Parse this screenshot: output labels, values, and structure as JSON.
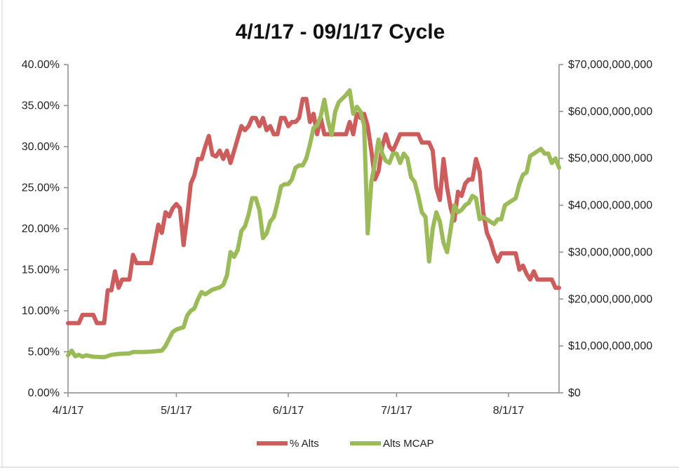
{
  "chart_data": {
    "type": "line",
    "title": "4/1/17 - 09/1/17 Cycle",
    "xlabel": "",
    "ylabel": "",
    "x_range": [
      "4/1/17",
      "8/15/17"
    ],
    "x_ticks": [
      "4/1/17",
      "5/1/17",
      "6/1/17",
      "7/1/17",
      "8/1/17"
    ],
    "y_left": {
      "ylim": [
        0,
        40
      ],
      "ticks": [
        "0.00%",
        "5.00%",
        "10.00%",
        "15.00%",
        "20.00%",
        "25.00%",
        "30.00%",
        "35.00%",
        "40.00%"
      ]
    },
    "y_right": {
      "ylim": [
        0,
        70000000000
      ],
      "ticks": [
        "$0",
        "$10,000,000,000",
        "$20,000,000,000",
        "$30,000,000,000",
        "$40,000,000,000",
        "$50,000,000,000",
        "$60,000,000,000",
        "$70,000,000,000"
      ]
    },
    "grid": false,
    "legend_position": "bottom",
    "series": [
      {
        "name": "% Alts",
        "axis": "left",
        "color": "#cd5c5c",
        "points": [
          [
            "4/1/17",
            8.5
          ],
          [
            "4/4/17",
            8.5
          ],
          [
            "4/5/17",
            9.5
          ],
          [
            "4/8/17",
            9.5
          ],
          [
            "4/9/17",
            8.5
          ],
          [
            "4/11/17",
            8.5
          ],
          [
            "4/12/17",
            12.5
          ],
          [
            "4/13/17",
            12.5
          ],
          [
            "4/14/17",
            14.8
          ],
          [
            "4/15/17",
            12.8
          ],
          [
            "4/16/17",
            13.8
          ],
          [
            "4/18/17",
            13.8
          ],
          [
            "4/19/17",
            16.8
          ],
          [
            "4/20/17",
            15.8
          ],
          [
            "4/24/17",
            15.8
          ],
          [
            "4/26/17",
            20.5
          ],
          [
            "4/27/17",
            19.5
          ],
          [
            "4/28/17",
            22.0
          ],
          [
            "4/29/17",
            21.5
          ],
          [
            "4/30/17",
            22.5
          ],
          [
            "5/1/17",
            23.0
          ],
          [
            "5/2/17",
            22.5
          ],
          [
            "5/3/17",
            18.0
          ],
          [
            "5/4/17",
            21.5
          ],
          [
            "5/5/17",
            25.5
          ],
          [
            "5/6/17",
            26.5
          ],
          [
            "5/7/17",
            28.5
          ],
          [
            "5/8/17",
            28.5
          ],
          [
            "5/9/17",
            30.0
          ],
          [
            "5/10/17",
            31.3
          ],
          [
            "5/11/17",
            29.0
          ],
          [
            "5/12/17",
            28.8
          ],
          [
            "5/13/17",
            29.5
          ],
          [
            "5/14/17",
            28.5
          ],
          [
            "5/15/17",
            29.5
          ],
          [
            "5/16/17",
            28.0
          ],
          [
            "5/17/17",
            29.5
          ],
          [
            "5/18/17",
            31.0
          ],
          [
            "5/19/17",
            32.5
          ],
          [
            "5/20/17",
            32.0
          ],
          [
            "5/21/17",
            32.5
          ],
          [
            "5/22/17",
            33.5
          ],
          [
            "5/23/17",
            33.5
          ],
          [
            "5/24/17",
            32.5
          ],
          [
            "5/25/17",
            33.5
          ],
          [
            "5/26/17",
            32.0
          ],
          [
            "5/27/17",
            32.5
          ],
          [
            "5/28/17",
            31.5
          ],
          [
            "5/29/17",
            31.5
          ],
          [
            "5/30/17",
            33.5
          ],
          [
            "5/31/17",
            33.5
          ],
          [
            "6/1/17",
            32.5
          ],
          [
            "6/2/17",
            33.0
          ],
          [
            "6/3/17",
            33.0
          ],
          [
            "6/4/17",
            33.5
          ],
          [
            "6/5/17",
            35.8
          ],
          [
            "6/6/17",
            35.8
          ],
          [
            "6/7/17",
            33.0
          ],
          [
            "6/8/17",
            34.0
          ],
          [
            "6/9/17",
            31.5
          ],
          [
            "6/10/17",
            33.5
          ],
          [
            "6/11/17",
            31.5
          ],
          [
            "6/17/17",
            31.5
          ],
          [
            "6/18/17",
            33.0
          ],
          [
            "6/19/17",
            31.5
          ],
          [
            "6/20/17",
            34.0
          ],
          [
            "6/21/17",
            33.5
          ],
          [
            "6/22/17",
            34.0
          ],
          [
            "6/23/17",
            32.5
          ],
          [
            "6/24/17",
            29.5
          ],
          [
            "6/25/17",
            26.0
          ],
          [
            "6/26/17",
            27.0
          ],
          [
            "6/27/17",
            30.0
          ],
          [
            "6/28/17",
            31.5
          ],
          [
            "6/29/17",
            30.0
          ],
          [
            "6/30/17",
            29.5
          ],
          [
            "7/1/17",
            30.5
          ],
          [
            "7/2/17",
            31.5
          ],
          [
            "7/7/17",
            31.5
          ],
          [
            "7/8/17",
            30.5
          ],
          [
            "7/10/17",
            30.5
          ],
          [
            "7/11/17",
            29.5
          ],
          [
            "7/12/17",
            25.0
          ],
          [
            "7/13/17",
            23.5
          ],
          [
            "7/14/17",
            28.5
          ],
          [
            "7/15/17",
            25.0
          ],
          [
            "7/16/17",
            22.5
          ],
          [
            "7/17/17",
            21.0
          ],
          [
            "7/18/17",
            24.5
          ],
          [
            "7/19/17",
            24.0
          ],
          [
            "7/20/17",
            25.5
          ],
          [
            "7/21/17",
            26.0
          ],
          [
            "7/22/17",
            26.0
          ],
          [
            "7/23/17",
            28.5
          ],
          [
            "7/24/17",
            27.0
          ],
          [
            "7/25/17",
            22.0
          ],
          [
            "7/26/17",
            19.5
          ],
          [
            "7/27/17",
            18.5
          ],
          [
            "7/28/17",
            17.0
          ],
          [
            "7/29/17",
            16.0
          ],
          [
            "7/30/17",
            17.0
          ],
          [
            "8/3/17",
            17.0
          ],
          [
            "8/4/17",
            15.0
          ],
          [
            "8/5/17",
            15.5
          ],
          [
            "8/6/17",
            14.5
          ],
          [
            "8/7/17",
            13.8
          ],
          [
            "8/8/17",
            14.8
          ],
          [
            "8/9/17",
            13.8
          ],
          [
            "8/13/17",
            13.8
          ],
          [
            "8/14/17",
            12.8
          ],
          [
            "8/15/17",
            12.8
          ]
        ]
      },
      {
        "name": "Alts MCAP",
        "axis": "right",
        "color": "#9bbb59",
        "points": [
          [
            "4/1/17",
            8000000000
          ],
          [
            "4/2/17",
            9000000000
          ],
          [
            "4/3/17",
            7800000000
          ],
          [
            "4/4/17",
            8100000000
          ],
          [
            "4/5/17",
            7700000000
          ],
          [
            "4/6/17",
            8000000000
          ],
          [
            "4/8/17",
            7700000000
          ],
          [
            "4/11/17",
            7600000000
          ],
          [
            "4/13/17",
            8100000000
          ],
          [
            "4/15/17",
            8300000000
          ],
          [
            "4/18/17",
            8400000000
          ],
          [
            "4/19/17",
            8700000000
          ],
          [
            "4/22/17",
            8700000000
          ],
          [
            "4/24/17",
            8800000000
          ],
          [
            "4/27/17",
            9000000000
          ],
          [
            "4/28/17",
            10000000000
          ],
          [
            "4/29/17",
            11500000000
          ],
          [
            "4/30/17",
            13000000000
          ],
          [
            "5/1/17",
            13500000000
          ],
          [
            "5/3/17",
            14000000000
          ],
          [
            "5/4/17",
            16500000000
          ],
          [
            "5/5/17",
            17500000000
          ],
          [
            "5/6/17",
            18000000000
          ],
          [
            "5/7/17",
            20000000000
          ],
          [
            "5/8/17",
            21500000000
          ],
          [
            "5/9/17",
            21000000000
          ],
          [
            "5/10/17",
            21500000000
          ],
          [
            "5/11/17",
            22000000000
          ],
          [
            "5/13/17",
            22500000000
          ],
          [
            "5/14/17",
            23000000000
          ],
          [
            "5/15/17",
            25000000000
          ],
          [
            "5/16/17",
            30000000000
          ],
          [
            "5/17/17",
            29000000000
          ],
          [
            "5/18/17",
            30500000000
          ],
          [
            "5/19/17",
            34500000000
          ],
          [
            "5/20/17",
            35500000000
          ],
          [
            "5/21/17",
            38000000000
          ],
          [
            "5/22/17",
            41500000000
          ],
          [
            "5/23/17",
            41500000000
          ],
          [
            "5/24/17",
            39000000000
          ],
          [
            "5/25/17",
            33000000000
          ],
          [
            "5/26/17",
            34000000000
          ],
          [
            "5/27/17",
            36500000000
          ],
          [
            "5/28/17",
            37500000000
          ],
          [
            "5/29/17",
            40500000000
          ],
          [
            "5/30/17",
            44000000000
          ],
          [
            "5/31/17",
            44500000000
          ],
          [
            "6/1/17",
            44500000000
          ],
          [
            "6/2/17",
            45500000000
          ],
          [
            "6/3/17",
            48000000000
          ],
          [
            "6/4/17",
            48500000000
          ],
          [
            "6/5/17",
            48500000000
          ],
          [
            "6/6/17",
            50000000000
          ],
          [
            "6/7/17",
            53000000000
          ],
          [
            "6/8/17",
            56500000000
          ],
          [
            "6/9/17",
            57000000000
          ],
          [
            "6/10/17",
            59000000000
          ],
          [
            "6/11/17",
            62500000000
          ],
          [
            "6/12/17",
            58000000000
          ],
          [
            "6/13/17",
            55000000000
          ],
          [
            "6/14/17",
            60000000000
          ],
          [
            "6/15/17",
            62000000000
          ],
          [
            "6/17/17",
            63500000000
          ],
          [
            "6/18/17",
            64500000000
          ],
          [
            "6/19/17",
            59500000000
          ],
          [
            "6/20/17",
            61000000000
          ],
          [
            "6/21/17",
            60000000000
          ],
          [
            "6/22/17",
            57000000000
          ],
          [
            "6/23/17",
            34000000000
          ],
          [
            "6/24/17",
            45000000000
          ],
          [
            "6/25/17",
            49000000000
          ],
          [
            "6/26/17",
            54000000000
          ],
          [
            "6/27/17",
            51000000000
          ],
          [
            "6/28/17",
            49500000000
          ],
          [
            "6/29/17",
            49000000000
          ],
          [
            "6/30/17",
            51000000000
          ],
          [
            "7/1/17",
            51000000000
          ],
          [
            "7/2/17",
            49000000000
          ],
          [
            "7/3/17",
            51000000000
          ],
          [
            "7/4/17",
            50000000000
          ],
          [
            "7/5/17",
            46000000000
          ],
          [
            "7/6/17",
            45000000000
          ],
          [
            "7/7/17",
            42000000000
          ],
          [
            "7/8/17",
            38500000000
          ],
          [
            "7/9/17",
            37500000000
          ],
          [
            "7/10/17",
            28000000000
          ],
          [
            "7/11/17",
            35000000000
          ],
          [
            "7/12/17",
            38500000000
          ],
          [
            "7/13/17",
            36500000000
          ],
          [
            "7/14/17",
            32000000000
          ],
          [
            "7/15/17",
            30000000000
          ],
          [
            "7/16/17",
            35000000000
          ],
          [
            "7/17/17",
            40000000000
          ],
          [
            "7/18/17",
            38500000000
          ],
          [
            "7/19/17",
            39000000000
          ],
          [
            "7/20/17",
            40000000000
          ],
          [
            "7/21/17",
            40500000000
          ],
          [
            "7/22/17",
            42000000000
          ],
          [
            "7/23/17",
            41500000000
          ],
          [
            "7/24/17",
            37000000000
          ],
          [
            "7/25/17",
            37500000000
          ],
          [
            "7/26/17",
            37000000000
          ],
          [
            "7/27/17",
            36500000000
          ],
          [
            "7/28/17",
            36000000000
          ],
          [
            "7/29/17",
            37000000000
          ],
          [
            "7/30/17",
            37000000000
          ],
          [
            "7/31/17",
            40000000000
          ],
          [
            "8/1/17",
            40500000000
          ],
          [
            "8/2/17",
            41000000000
          ],
          [
            "8/3/17",
            41500000000
          ],
          [
            "8/4/17",
            44500000000
          ],
          [
            "8/5/17",
            46500000000
          ],
          [
            "8/6/17",
            47000000000
          ],
          [
            "8/7/17",
            50500000000
          ],
          [
            "8/8/17",
            51000000000
          ],
          [
            "8/9/17",
            51500000000
          ],
          [
            "8/10/17",
            52000000000
          ],
          [
            "8/11/17",
            51000000000
          ],
          [
            "8/12/17",
            51000000000
          ],
          [
            "8/13/17",
            49000000000
          ],
          [
            "8/14/17",
            50000000000
          ],
          [
            "8/15/17",
            48000000000
          ]
        ]
      }
    ]
  }
}
